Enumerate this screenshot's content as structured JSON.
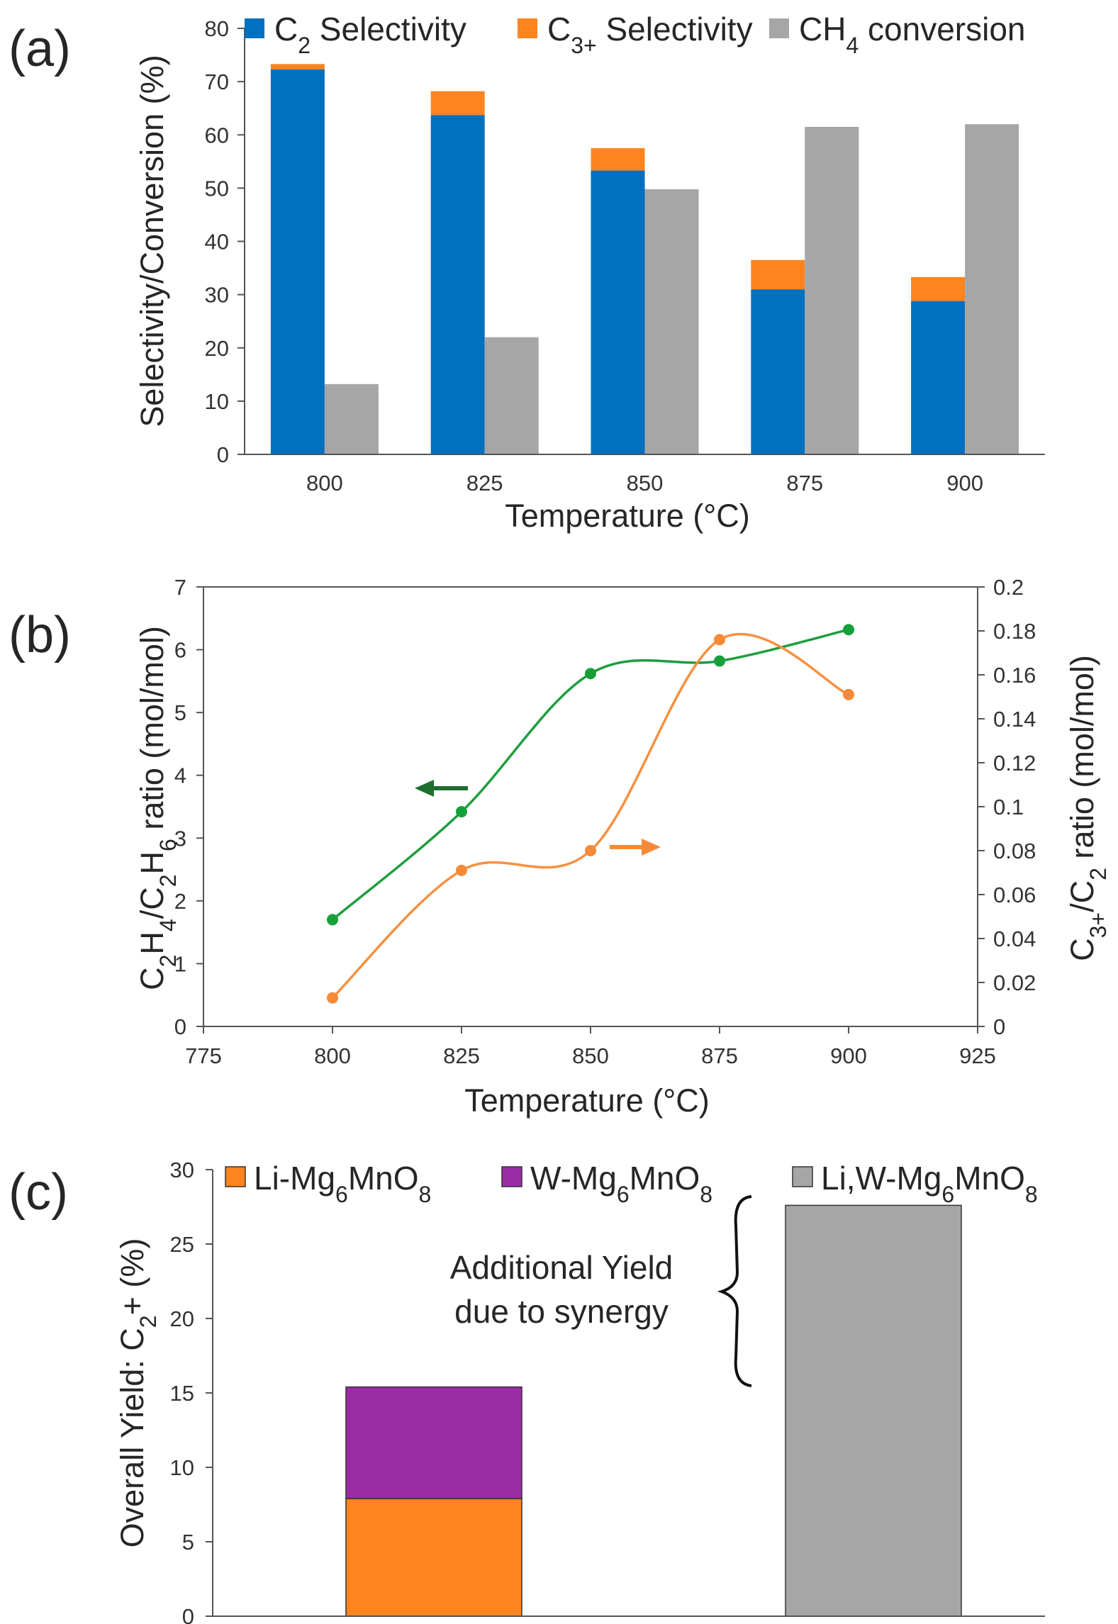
{
  "figure_labels": [
    "(a)",
    "(b)",
    "(c)"
  ],
  "chart_data": [
    {
      "panel": "(a)",
      "type": "bar",
      "stacked_groups": [
        [
          "C2 Selectivity",
          "C3+ Selectivity"
        ],
        [
          "CH4 conversion"
        ]
      ],
      "categories": [
        "800",
        "825",
        "850",
        "875",
        "900"
      ],
      "series": [
        {
          "name": "C2 Selectivity",
          "label_main": "C",
          "label_sub": "2",
          "label_rest": " Selectivity",
          "color": "#0070c0",
          "values": [
            72.3,
            63.7,
            53.3,
            31.0,
            28.8
          ]
        },
        {
          "name": "C3+ Selectivity",
          "label_main": "C",
          "label_sub": "3+",
          "label_rest": " Selectivity",
          "color": "#fd841f",
          "values": [
            1.0,
            4.5,
            4.2,
            5.5,
            4.5
          ]
        },
        {
          "name": "CH4 conversion",
          "label_main": "CH",
          "label_sub": "4",
          "label_rest": " conversion",
          "color": "#a6a6a6",
          "values": [
            13.2,
            22.0,
            49.8,
            61.5,
            62.0
          ]
        }
      ],
      "xlabel": "Temperature (°C)",
      "ylabel": "Selectivity/Conversion (%)",
      "ylim": [
        0,
        80
      ],
      "yticks": [
        0,
        10,
        20,
        30,
        40,
        50,
        60,
        70,
        80
      ],
      "grid": false,
      "legend": "top"
    },
    {
      "panel": "(b)",
      "type": "line",
      "x": [
        800,
        825,
        850,
        875,
        900
      ],
      "xlabel": "Temperature (°C)",
      "xlim": [
        775,
        925
      ],
      "xticks": [
        775,
        800,
        825,
        850,
        875,
        900,
        925
      ],
      "ylabel_left": {
        "parts": [
          [
            "C",
            ""
          ],
          [
            "2",
            "sub"
          ],
          [
            "H",
            ""
          ],
          [
            "4",
            "sub"
          ],
          [
            "/C",
            ""
          ],
          [
            "2",
            "sub"
          ],
          [
            "H",
            ""
          ],
          [
            "6",
            "sub"
          ],
          [
            " ratio (mol/mol)",
            ""
          ]
        ]
      },
      "ylabel_right": {
        "parts": [
          [
            "C",
            ""
          ],
          [
            "3+",
            "sub"
          ],
          [
            "/C",
            ""
          ],
          [
            "2",
            "sub"
          ],
          [
            " ratio (mol/mol)",
            ""
          ]
        ]
      },
      "ylim_left": [
        0,
        7
      ],
      "yticks_left": [
        "0",
        "1",
        "2",
        "3",
        "4",
        "5",
        "6",
        "7"
      ],
      "ylim_right": [
        0,
        0.2
      ],
      "yticks_right": [
        "0",
        "0.02",
        "0.04",
        "0.06",
        "0.08",
        "0.1",
        "0.12",
        "0.14",
        "0.16",
        "0.18",
        "0.2"
      ],
      "series": [
        {
          "name": "C2H4/C2H6 ratio",
          "axis": "left",
          "color": "#1e9e3e",
          "marker_color": "#16a03a",
          "smooth": true,
          "values": [
            1.7,
            3.42,
            5.62,
            5.82,
            6.32
          ]
        },
        {
          "name": "C3+/C2 ratio",
          "axis": "right",
          "color": "#f79040",
          "marker_color": "#f68a36",
          "smooth": true,
          "values": [
            0.013,
            0.071,
            0.08,
            0.176,
            0.151
          ]
        }
      ],
      "annotations": [
        {
          "type": "arrow",
          "direction": "left",
          "color": "#1e6e2e",
          "points_to": "left axis"
        },
        {
          "type": "arrow",
          "direction": "right",
          "color": "#f68a36",
          "points_to": "right axis"
        }
      ],
      "grid": false
    },
    {
      "panel": "(c)",
      "type": "bar",
      "stacked": true,
      "bars": [
        {
          "segments": [
            {
              "name": "Li-Mg6MnO8",
              "value": 7.9
            },
            {
              "name": "W-Mg6MnO8",
              "value": 7.5
            }
          ]
        },
        {
          "segments": [
            {
              "name": "Li,W-Mg6MnO8",
              "value": 27.6
            }
          ]
        }
      ],
      "series": [
        {
          "name": "Li-Mg6MnO8",
          "label_parts": [
            [
              "Li-Mg",
              ""
            ],
            [
              "6",
              "sub"
            ],
            [
              "MnO",
              ""
            ],
            [
              "8",
              "sub"
            ]
          ],
          "color": "#fd841f"
        },
        {
          "name": "W-Mg6MnO8",
          "label_parts": [
            [
              "W-Mg",
              ""
            ],
            [
              "6",
              "sub"
            ],
            [
              "MnO",
              ""
            ],
            [
              "8",
              "sub"
            ]
          ],
          "color": "#9a2ca6"
        },
        {
          "name": "Li,W-Mg6MnO8",
          "label_parts": [
            [
              "Li,W-Mg",
              ""
            ],
            [
              "6",
              "sub"
            ],
            [
              "MnO",
              ""
            ],
            [
              "8",
              "sub"
            ]
          ],
          "color": "#a6a6a6"
        }
      ],
      "ylabel": {
        "parts": [
          [
            "Overall Yield: C",
            ""
          ],
          [
            "2",
            "sub"
          ],
          [
            "+ (%)",
            ""
          ]
        ]
      },
      "ylim": [
        0,
        30
      ],
      "yticks": [
        0,
        5,
        10,
        15,
        20,
        25,
        30
      ],
      "annotation": {
        "lines": [
          "Additional Yield",
          "due to synergy"
        ],
        "brace": true
      },
      "legend": "top",
      "grid": false
    }
  ]
}
